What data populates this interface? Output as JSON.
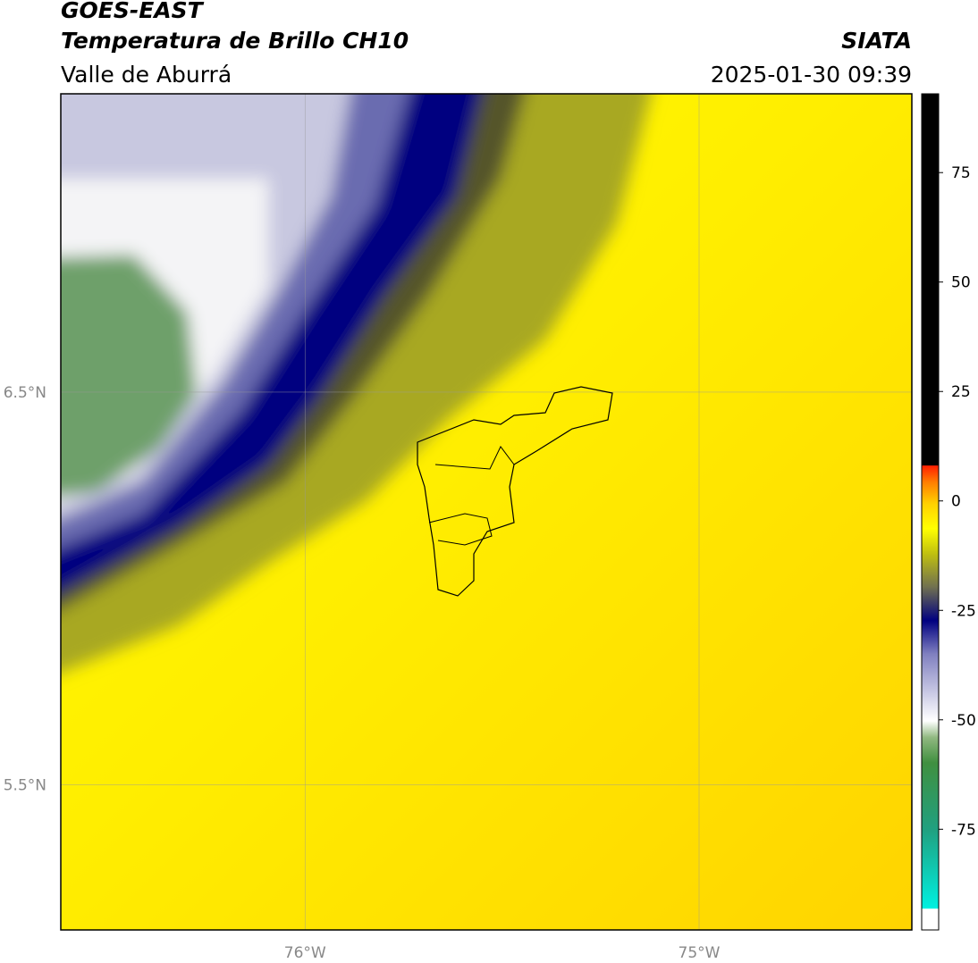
{
  "header": {
    "title": "GOES-EAST",
    "subtitle": "Temperatura de Brillo CH10",
    "region": "Valle de Aburrá",
    "source": "SIATA",
    "timestamp": "2025-01-30 09:39"
  },
  "map": {
    "xlim": [
      -76.62,
      -74.46
    ],
    "ylim": [
      5.13,
      7.26
    ],
    "xticks": [
      {
        "value": -76,
        "label": "76°W"
      },
      {
        "value": -75,
        "label": "75°W"
      }
    ],
    "yticks": [
      {
        "value": 6.5,
        "label": "6.5°N"
      },
      {
        "value": 5.5,
        "label": "5.5°N"
      }
    ]
  },
  "colorbar": {
    "lim": [
      -98,
      93
    ],
    "ticks": [
      75,
      50,
      25,
      0,
      -25,
      -50,
      -75
    ]
  }
}
